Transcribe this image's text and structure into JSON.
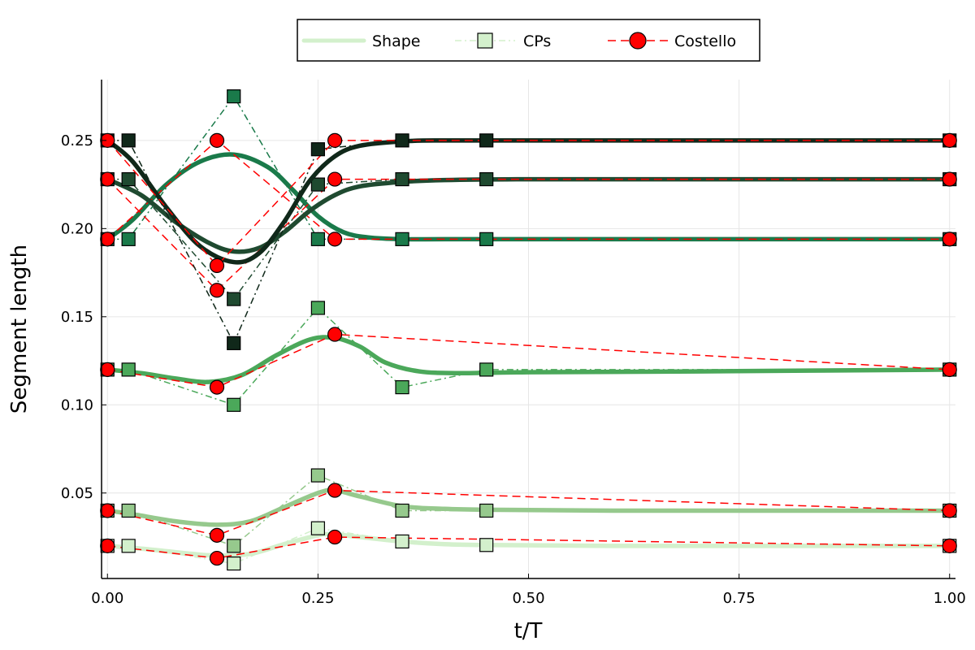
{
  "chart_data": {
    "type": "line",
    "xlabel": "t/T",
    "ylabel": "Segment length",
    "xlim": [
      -0.007,
      1.007
    ],
    "ylim": [
      0.0015,
      0.2845
    ],
    "xticks": [
      0.0,
      0.25,
      0.5,
      0.75,
      1.0
    ],
    "xtick_labels": [
      "0.00",
      "0.25",
      "0.50",
      "0.75",
      "1.00"
    ],
    "yticks": [
      0.05,
      0.1,
      0.15,
      0.2,
      0.25
    ],
    "ytick_labels": [
      "0.05",
      "0.10",
      "0.15",
      "0.20",
      "0.25"
    ],
    "grid": true,
    "legend_position": "top-center",
    "legend": [
      {
        "label": "Shape",
        "style": "solid line",
        "color": "#d3f0cc"
      },
      {
        "label": "CPs",
        "style": "dash-dot line with square markers",
        "color": "#d3f0cc"
      },
      {
        "label": "Costello",
        "style": "dashed line with circle markers",
        "color": "#ff0000"
      }
    ],
    "costello_color": "#ff0000",
    "segments": [
      {
        "color": "#d3f0cc",
        "shape": {
          "x": [
            0.0,
            0.05,
            0.1,
            0.13,
            0.17,
            0.21,
            0.25,
            0.27,
            0.3,
            0.35,
            0.4,
            0.45,
            0.6,
            0.8,
            1.0
          ],
          "y": [
            0.02,
            0.018,
            0.0155,
            0.0145,
            0.0155,
            0.021,
            0.026,
            0.0265,
            0.025,
            0.0225,
            0.021,
            0.0205,
            0.02,
            0.02,
            0.02
          ]
        },
        "cps": {
          "x": [
            0.0,
            0.025,
            0.15,
            0.25,
            0.35,
            0.45,
            1.0
          ],
          "y": [
            0.02,
            0.02,
            0.01,
            0.03,
            0.0225,
            0.0205,
            0.02
          ]
        },
        "costello": {
          "x": [
            0.0,
            0.13,
            0.27,
            1.0
          ],
          "y": [
            0.02,
            0.013,
            0.025,
            0.02
          ]
        }
      },
      {
        "color": "#96c98d",
        "shape": {
          "x": [
            0.0,
            0.03,
            0.08,
            0.13,
            0.17,
            0.21,
            0.25,
            0.27,
            0.3,
            0.35,
            0.4,
            0.45,
            0.6,
            0.8,
            1.0
          ],
          "y": [
            0.04,
            0.038,
            0.034,
            0.032,
            0.034,
            0.042,
            0.05,
            0.0515,
            0.048,
            0.0425,
            0.041,
            0.0405,
            0.04,
            0.04,
            0.04
          ]
        },
        "cps": {
          "x": [
            0.0,
            0.025,
            0.15,
            0.25,
            0.35,
            0.45,
            1.0
          ],
          "y": [
            0.04,
            0.04,
            0.02,
            0.06,
            0.04,
            0.04,
            0.04
          ]
        },
        "costello": {
          "x": [
            0.0,
            0.13,
            0.27,
            1.0
          ],
          "y": [
            0.04,
            0.026,
            0.0515,
            0.04
          ]
        }
      },
      {
        "color": "#4ba85a",
        "shape": {
          "x": [
            0.0,
            0.04,
            0.08,
            0.12,
            0.16,
            0.2,
            0.24,
            0.27,
            0.3,
            0.33,
            0.37,
            0.42,
            0.5,
            0.7,
            1.0
          ],
          "y": [
            0.12,
            0.118,
            0.115,
            0.113,
            0.117,
            0.128,
            0.137,
            0.138,
            0.133,
            0.124,
            0.119,
            0.118,
            0.1185,
            0.119,
            0.12
          ]
        },
        "cps": {
          "x": [
            0.0,
            0.025,
            0.15,
            0.25,
            0.35,
            0.45,
            1.0
          ],
          "y": [
            0.12,
            0.12,
            0.1,
            0.155,
            0.11,
            0.12,
            0.12
          ]
        },
        "costello": {
          "x": [
            0.0,
            0.13,
            0.27,
            1.0
          ],
          "y": [
            0.12,
            0.11,
            0.14,
            0.12
          ]
        }
      },
      {
        "color": "#1a7a4a",
        "shape": {
          "x": [
            0.0,
            0.03,
            0.07,
            0.11,
            0.15,
            0.19,
            0.22,
            0.25,
            0.28,
            0.31,
            0.35,
            0.4,
            0.5,
            0.7,
            1.0
          ],
          "y": [
            0.194,
            0.205,
            0.225,
            0.238,
            0.242,
            0.235,
            0.222,
            0.207,
            0.198,
            0.195,
            0.194,
            0.194,
            0.194,
            0.194,
            0.194
          ]
        },
        "cps": {
          "x": [
            0.0,
            0.025,
            0.15,
            0.25,
            0.35,
            0.45,
            1.0
          ],
          "y": [
            0.194,
            0.194,
            0.275,
            0.194,
            0.194,
            0.194,
            0.194
          ]
        },
        "costello": {
          "x": [
            0.0,
            0.13,
            0.27,
            1.0
          ],
          "y": [
            0.194,
            0.25,
            0.194,
            0.194
          ]
        }
      },
      {
        "color": "#1f4a30",
        "shape": {
          "x": [
            0.0,
            0.04,
            0.08,
            0.12,
            0.15,
            0.18,
            0.21,
            0.24,
            0.27,
            0.3,
            0.35,
            0.4,
            0.5,
            0.7,
            1.0
          ],
          "y": [
            0.228,
            0.219,
            0.204,
            0.192,
            0.187,
            0.189,
            0.198,
            0.21,
            0.219,
            0.224,
            0.2265,
            0.2275,
            0.228,
            0.228,
            0.228
          ]
        },
        "cps": {
          "x": [
            0.0,
            0.025,
            0.15,
            0.25,
            0.35,
            0.45,
            1.0
          ],
          "y": [
            0.228,
            0.228,
            0.16,
            0.225,
            0.228,
            0.228,
            0.228
          ]
        },
        "costello": {
          "x": [
            0.0,
            0.13,
            0.27,
            1.0
          ],
          "y": [
            0.228,
            0.165,
            0.228,
            0.228
          ]
        }
      },
      {
        "color": "#10281a",
        "shape": {
          "x": [
            0.0,
            0.03,
            0.07,
            0.11,
            0.15,
            0.18,
            0.21,
            0.24,
            0.27,
            0.3,
            0.35,
            0.4,
            0.5,
            0.7,
            1.0
          ],
          "y": [
            0.25,
            0.238,
            0.212,
            0.19,
            0.181,
            0.186,
            0.204,
            0.227,
            0.241,
            0.247,
            0.2495,
            0.25,
            0.25,
            0.25,
            0.25
          ]
        },
        "cps": {
          "x": [
            0.0,
            0.025,
            0.15,
            0.25,
            0.35,
            0.45,
            1.0
          ],
          "y": [
            0.25,
            0.25,
            0.135,
            0.245,
            0.25,
            0.25,
            0.25
          ]
        },
        "costello": {
          "x": [
            0.0,
            0.13,
            0.27,
            1.0
          ],
          "y": [
            0.25,
            0.179,
            0.25,
            0.25
          ]
        }
      }
    ]
  }
}
